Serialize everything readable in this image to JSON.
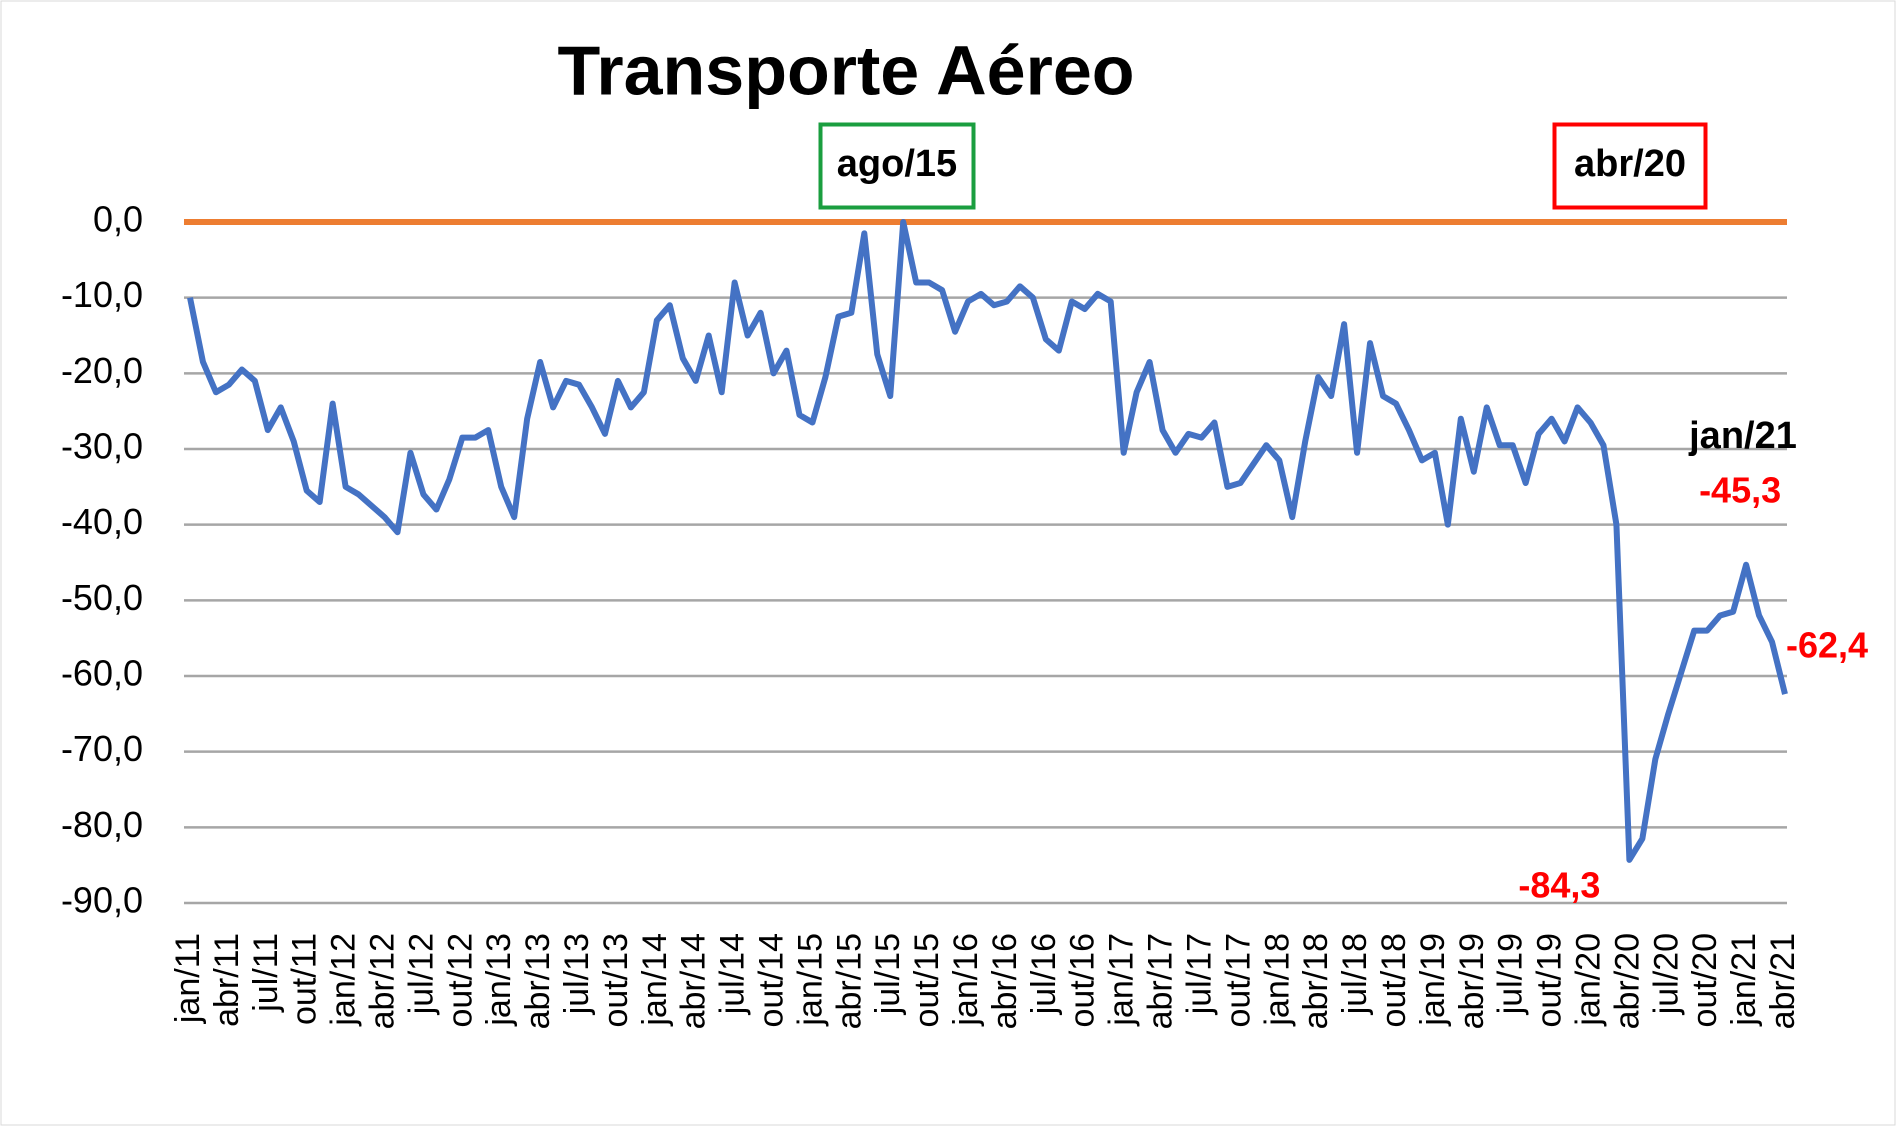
{
  "chart_data": {
    "type": "line",
    "title": "Transporte Aéreo",
    "categories": [
      "jan/11",
      null,
      null,
      "abr/11",
      null,
      null,
      "jul/11",
      null,
      null,
      "out/11",
      null,
      null,
      "jan/12",
      null,
      null,
      "abr/12",
      null,
      null,
      "jul/12",
      null,
      null,
      "out/12",
      null,
      null,
      "jan/13",
      null,
      null,
      "abr/13",
      null,
      null,
      "jul/13",
      null,
      null,
      "out/13",
      null,
      null,
      "jan/14",
      null,
      null,
      "abr/14",
      null,
      null,
      "jul/14",
      null,
      null,
      "out/14",
      null,
      null,
      "jan/15",
      null,
      null,
      "abr/15",
      null,
      null,
      "jul/15",
      null,
      null,
      "out/15",
      null,
      null,
      "jan/16",
      null,
      null,
      "abr/16",
      null,
      null,
      "jul/16",
      null,
      null,
      "out/16",
      null,
      null,
      "jan/17",
      null,
      null,
      "abr/17",
      null,
      null,
      "jul/17",
      null,
      null,
      "out/17",
      null,
      null,
      "jan/18",
      null,
      null,
      "abr/18",
      null,
      null,
      "jul/18",
      null,
      null,
      "out/18",
      null,
      null,
      "jan/19",
      null,
      null,
      "abr/19",
      null,
      null,
      "jul/19",
      null,
      null,
      "out/19",
      null,
      null,
      "jan/20",
      null,
      null,
      "abr/20",
      null,
      null,
      "jul/20",
      null,
      null,
      "out/20",
      null,
      null,
      "jan/21",
      null,
      null,
      "abr/21"
    ],
    "series": [
      {
        "color": "#4472c4",
        "values": [
          -10,
          -18.5,
          -22.5,
          -21.5,
          -19.5,
          -21,
          -27.5,
          -24.5,
          -29,
          -35.5,
          -37,
          -24,
          -35,
          -36,
          -37.5,
          -39,
          -41,
          -30.5,
          -36,
          -38,
          -34,
          -28.5,
          -28.5,
          -27.5,
          -35,
          -39,
          -26,
          -18.5,
          -24.5,
          -21,
          -21.5,
          -24.5,
          -28,
          -21,
          -24.5,
          -22.5,
          -13,
          -11,
          -18,
          -21,
          -15,
          -22.5,
          -8,
          -15,
          -12,
          -20,
          -17,
          -25.5,
          -26.5,
          -20.5,
          -12.5,
          -12,
          -1.5,
          -17.5,
          -23,
          0,
          -8,
          -8,
          -9,
          -14.5,
          -10.5,
          -9.5,
          -11,
          -10.5,
          -8.5,
          -10,
          -15.5,
          -17,
          -10.5,
          -11.5,
          -9.5,
          -10.5,
          -30.5,
          -22.5,
          -18.5,
          -27.5,
          -30.5,
          -28,
          -28.5,
          -26.5,
          -35,
          -34.5,
          -32,
          -29.5,
          -31.5,
          -39,
          -29,
          -20.5,
          -23,
          -13.5,
          -30.5,
          -16,
          -23,
          -24,
          -27.5,
          -31.5,
          -30.5,
          -40,
          -26,
          -33,
          -24.5,
          -29.5,
          -29.5,
          -34.5,
          -28,
          -26,
          -29,
          -24.5,
          -26.5,
          -29.5,
          -40,
          -84.3,
          -81.5,
          -71,
          -65,
          -59.5,
          -54,
          -54,
          -52,
          -51.5,
          -45.3,
          -52,
          -55.5,
          -62.4
        ],
        "value_labels": [
          null,
          null,
          null,
          null,
          null,
          null,
          null,
          null,
          null,
          null,
          null,
          null,
          null,
          null,
          null,
          null,
          null,
          null,
          null,
          null,
          null,
          null,
          null,
          null,
          null,
          null,
          null,
          null,
          null,
          null,
          null,
          null,
          null,
          null,
          null,
          null,
          null,
          null,
          null,
          null,
          null,
          null,
          null,
          null,
          null,
          null,
          null,
          null,
          null,
          null,
          null,
          null,
          null,
          null,
          null,
          null,
          null,
          null,
          null,
          null,
          null,
          null,
          null,
          null,
          null,
          null,
          null,
          null,
          null,
          null,
          null,
          null,
          null,
          null,
          null,
          null,
          null,
          null,
          null,
          null,
          null,
          null,
          null,
          null,
          null,
          null,
          null,
          null,
          null,
          null,
          null,
          null,
          null,
          null,
          null,
          null,
          null,
          null,
          null,
          null,
          null,
          null,
          null,
          null,
          null,
          null,
          null,
          null,
          null,
          null,
          null,
          "-84,3",
          null,
          null,
          null,
          null,
          null,
          null,
          null,
          null,
          "-45,3",
          null,
          null,
          "-62,4"
        ],
        "value_label_color": "#ff0000"
      }
    ],
    "ylim": [
      -90,
      0
    ],
    "yticks": [
      {
        "value": 0,
        "label": "0,0"
      },
      {
        "value": -10,
        "label": "-10,0"
      },
      {
        "value": -20,
        "label": "-20,0"
      },
      {
        "value": -30,
        "label": "-30,0"
      },
      {
        "value": -40,
        "label": "-40,0"
      },
      {
        "value": -50,
        "label": "-50,0"
      },
      {
        "value": -60,
        "label": "-60,0"
      },
      {
        "value": -70,
        "label": "-70,0"
      },
      {
        "value": -80,
        "label": "-80,0"
      },
      {
        "value": -90,
        "label": "-90,0"
      }
    ],
    "grid": true,
    "reference_line": {
      "value": 0,
      "color": "#ed7d31"
    },
    "annotations": [
      {
        "text": "ago/15",
        "color": "#1a9e3f"
      },
      {
        "text": "abr/20",
        "color": "#ff0000"
      },
      {
        "text": "jan/21"
      }
    ]
  }
}
